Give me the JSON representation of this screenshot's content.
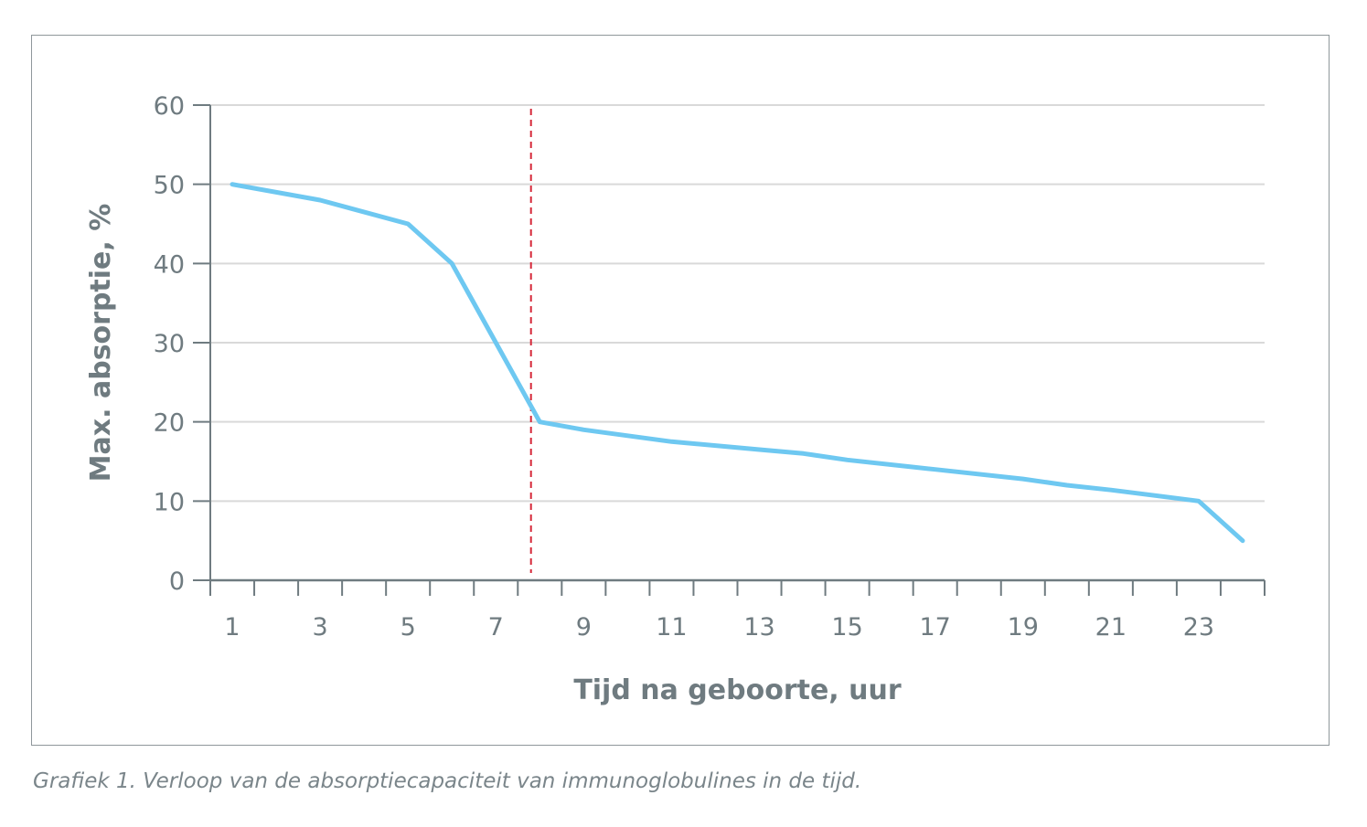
{
  "chart_data": {
    "type": "line",
    "title": "",
    "xlabel": "Tijd na geboorte, uur",
    "ylabel": "Max. absorptie, %",
    "x": [
      1,
      3,
      5,
      6,
      7,
      8,
      9,
      11,
      13,
      14,
      15,
      17,
      19,
      20,
      21,
      23,
      24
    ],
    "series": [
      {
        "values": [
          50,
          48,
          45,
          40,
          30,
          20,
          19,
          17.5,
          16.5,
          16,
          15.2,
          14,
          12.8,
          12,
          11.4,
          10,
          5
        ],
        "color": "#6ec8f1"
      }
    ],
    "xticks": [
      "1",
      "3",
      "5",
      "7",
      "9",
      "11",
      "13",
      "15",
      "17",
      "19",
      "21",
      "23"
    ],
    "yticks": [
      "0",
      "10",
      "20",
      "30",
      "40",
      "50",
      "60"
    ],
    "xlim": [
      0.5,
      24.5
    ],
    "ylim": [
      0,
      60
    ],
    "reference_line": {
      "x": 7.8,
      "style": "dashed",
      "color": "#d6293a"
    },
    "grid": "horizontal",
    "legend": "none",
    "colors": {
      "line": "#6ec8f1",
      "axis": "#6f7b80",
      "grid": "#d9d9d9",
      "reference": "#d6293a"
    }
  },
  "caption": "Grafiek 1. Verloop van de absorptiecapaciteit van immunoglobulines in de tijd."
}
